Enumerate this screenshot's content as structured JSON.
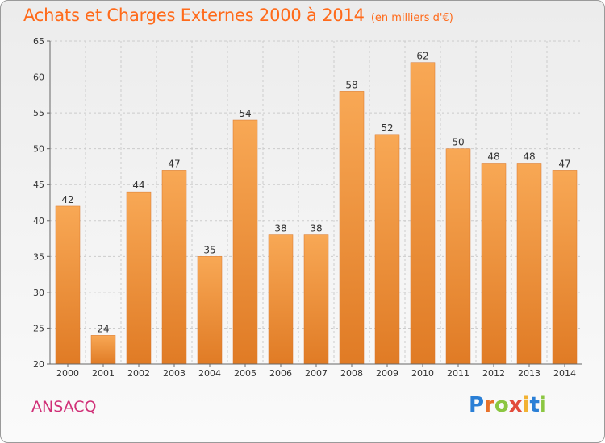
{
  "header": {
    "title": "Achats et Charges Externes 2000 à 2014",
    "unit": "(en milliers d'€)"
  },
  "footer": {
    "commune": "ANSACQ",
    "brand_letters": [
      {
        "ch": "P",
        "color": "#2a7fd6"
      },
      {
        "ch": "r",
        "color": "#e8712a"
      },
      {
        "ch": "o",
        "color": "#8bc641"
      },
      {
        "ch": "x",
        "color": "#e24b3b"
      },
      {
        "ch": "i",
        "color": "#f2b233"
      },
      {
        "ch": "t",
        "color": "#2a7fd6"
      },
      {
        "ch": "i",
        "color": "#8bc641"
      }
    ]
  },
  "chart_data": {
    "type": "bar",
    "categories": [
      "2000",
      "2001",
      "2002",
      "2003",
      "2004",
      "2005",
      "2006",
      "2007",
      "2008",
      "2009",
      "2010",
      "2011",
      "2012",
      "2013",
      "2014"
    ],
    "values": [
      42,
      24,
      44,
      47,
      35,
      54,
      38,
      38,
      58,
      52,
      62,
      50,
      48,
      48,
      47
    ],
    "yticks": [
      20,
      25,
      30,
      35,
      40,
      45,
      50,
      55,
      60,
      65
    ],
    "ylim": [
      20,
      65
    ],
    "grid": true,
    "colors": {
      "bar_light": "#f8a855",
      "bar_dark": "#e07b25",
      "bar_edge": "#d8752a",
      "grid": "#cccccc",
      "axis": "#666666"
    }
  }
}
